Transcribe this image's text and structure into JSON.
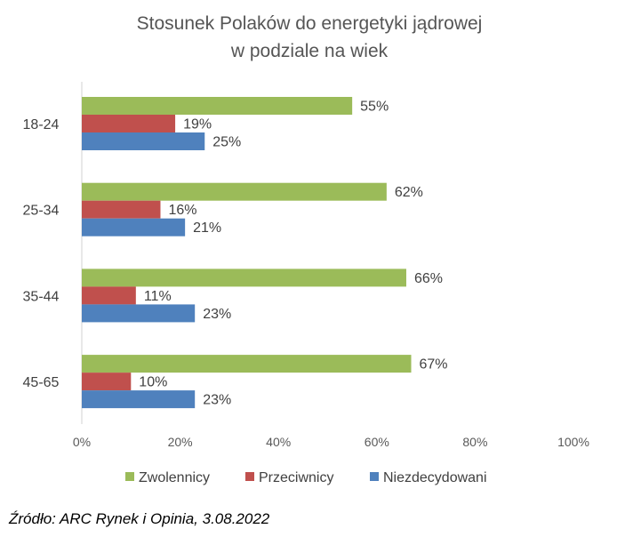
{
  "chart_data": {
    "type": "bar",
    "orientation": "horizontal",
    "title_line1": "Stosunek Polaków do energetyki jądrowej",
    "title_line2": "w podziale na wiek",
    "categories": [
      "18-24",
      "25-34",
      "35-44",
      "45-65"
    ],
    "series": [
      {
        "name": "Zwolennicy",
        "color": "#9BBB59",
        "values": [
          55,
          62,
          66,
          67
        ],
        "labels": [
          "55%",
          "62%",
          "66%",
          "67%"
        ]
      },
      {
        "name": "Przeciwnicy",
        "color": "#C0504D",
        "values": [
          19,
          16,
          11,
          10
        ],
        "labels": [
          "19%",
          "16%",
          "11%",
          "10%"
        ]
      },
      {
        "name": "Niezdecydowani",
        "color": "#4F81BD",
        "values": [
          25,
          21,
          23,
          23
        ],
        "labels": [
          "25%",
          "21%",
          "23%",
          "23%"
        ]
      }
    ],
    "xlim": [
      0,
      100
    ],
    "x_ticks": [
      "0%",
      "20%",
      "40%",
      "60%",
      "80%",
      "100%"
    ],
    "legend_position": "bottom",
    "gridlines": false
  },
  "source": "Źródło: ARC Rynek i Opinia, 3.08.2022"
}
